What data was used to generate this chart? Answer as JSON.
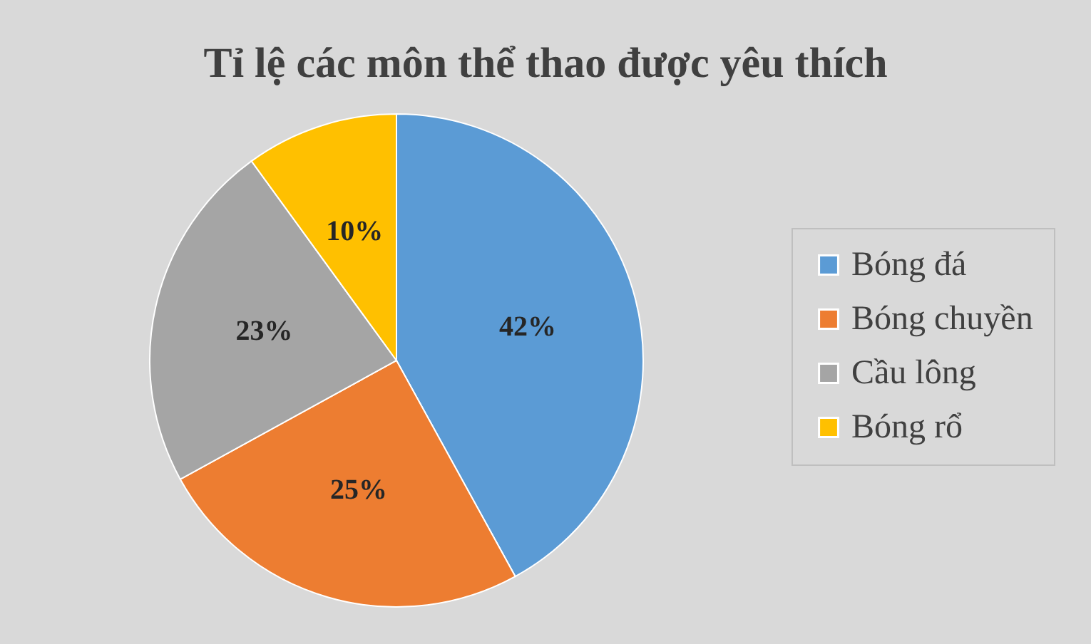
{
  "chart_data": {
    "type": "pie",
    "title": "Tỉ lệ các môn thể thao được yêu thích",
    "categories": [
      "Bóng đá",
      "Bóng chuyền",
      "Cầu lông",
      "Bóng rổ"
    ],
    "values": [
      42,
      25,
      23,
      10
    ],
    "colors": [
      "#5b9bd5",
      "#ed7d31",
      "#a5a5a5",
      "#ffc000"
    ],
    "value_labels": [
      "42%",
      "25%",
      "23%",
      "10%"
    ],
    "legend": "right"
  }
}
